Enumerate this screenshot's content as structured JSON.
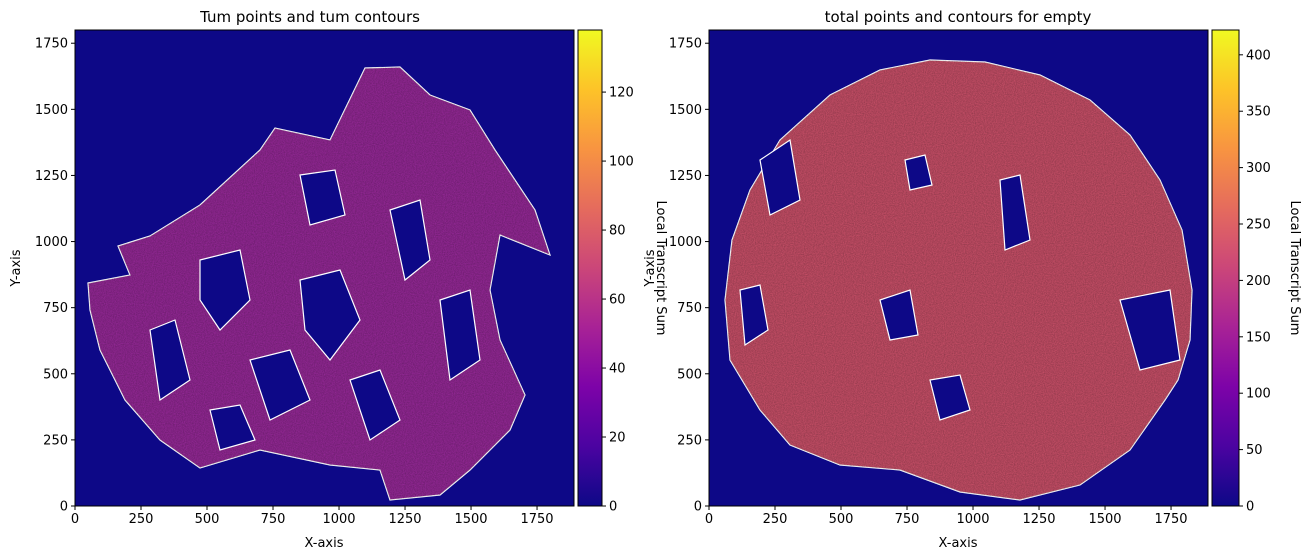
{
  "chart_data": [
    {
      "type": "heatmap",
      "title": "Tum points and tum contours",
      "xlabel": "X-axis",
      "ylabel": "Y-axis",
      "xlim": [
        0,
        1890
      ],
      "ylim": [
        0,
        1800
      ],
      "x_ticks": [
        0,
        250,
        500,
        750,
        1000,
        1250,
        1500,
        1750
      ],
      "y_ticks": [
        0,
        250,
        500,
        750,
        1000,
        1250,
        1500,
        1750
      ],
      "colormap": "plasma",
      "background_color": "#0d0887",
      "contour_color": "#ffffff",
      "colorbar": {
        "label": "Local Transcript Sum",
        "range": [
          0,
          138
        ],
        "ticks": [
          0,
          20,
          40,
          60,
          80,
          100,
          120
        ]
      },
      "tissue_mean_value": 55
    },
    {
      "type": "heatmap",
      "title": "total points and contours for empty",
      "xlabel": "X-axis",
      "ylabel": "Y-axis",
      "xlim": [
        0,
        1890
      ],
      "ylim": [
        0,
        1800
      ],
      "x_ticks": [
        0,
        250,
        500,
        750,
        1000,
        1250,
        1500,
        1750
      ],
      "y_ticks": [
        0,
        250,
        500,
        750,
        1000,
        1250,
        1500,
        1750
      ],
      "colormap": "plasma",
      "background_color": "#0d0887",
      "contour_color": "#ffffff",
      "colorbar": {
        "label": "Local Transcript Sum",
        "range": [
          0,
          422
        ],
        "ticks": [
          0,
          50,
          100,
          150,
          200,
          250,
          300,
          350,
          400
        ]
      },
      "tissue_mean_value": 230
    }
  ]
}
